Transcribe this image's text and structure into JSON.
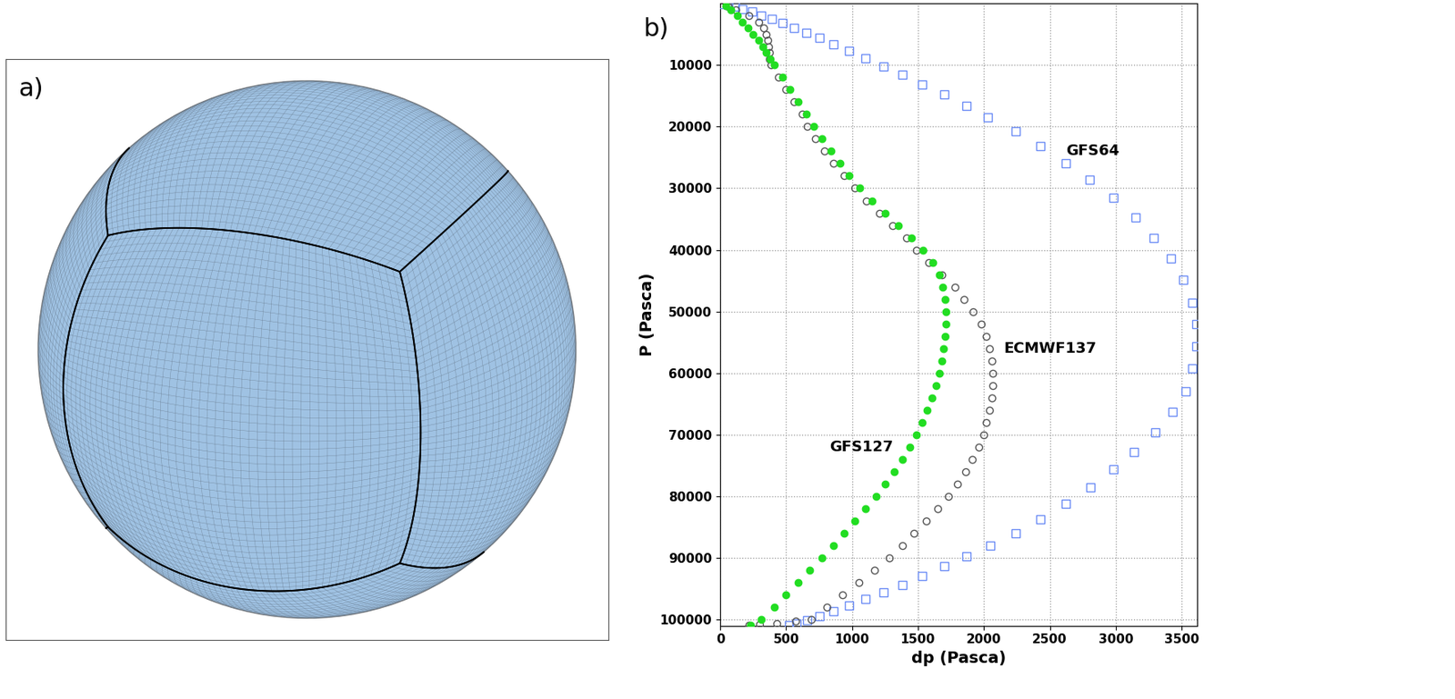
{
  "chart_data": [
    {
      "type": "globe",
      "annotation": "a)"
    },
    {
      "type": "scatter",
      "annotation": "b)",
      "x_label": "dp (Pasca)",
      "y_label": "P (Pasca)",
      "xlim": [
        0,
        3620
      ],
      "ylim": [
        101000,
        0
      ],
      "xticks": [
        0,
        500,
        1000,
        1500,
        2000,
        2500,
        3000,
        3500
      ],
      "yticks": [
        10000,
        20000,
        30000,
        40000,
        50000,
        60000,
        70000,
        80000,
        90000,
        100000
      ],
      "grid": true,
      "series": [
        {
          "name": "GFS64",
          "color": "#6b8cf5",
          "marker": "open_square",
          "x": [
            20,
            60,
            110,
            170,
            240,
            310,
            390,
            470,
            560,
            650,
            750,
            860,
            980,
            1100,
            1240,
            1380,
            1530,
            1700,
            1870,
            2030,
            2240,
            2430,
            2620,
            2800,
            2980,
            3150,
            3290,
            3420,
            3510,
            3580,
            3610,
            3610,
            3580,
            3530,
            3430,
            3300,
            3140,
            2980,
            2810,
            2620,
            2430,
            2240,
            2050,
            1870,
            1700,
            1530,
            1380,
            1240,
            1100,
            980,
            860,
            750,
            660,
            580,
            520
          ],
          "values": [
            50,
            200,
            500,
            900,
            1300,
            1900,
            2500,
            3200,
            3900,
            4700,
            5600,
            6600,
            7700,
            8900,
            10200,
            11600,
            13100,
            14800,
            16600,
            18500,
            20800,
            23200,
            25900,
            28600,
            31500,
            34700,
            38100,
            41400,
            44900,
            48600,
            52100,
            55700,
            59300,
            63000,
            66300,
            69600,
            72800,
            75600,
            78600,
            81200,
            83700,
            86000,
            88000,
            89800,
            91400,
            93000,
            94400,
            95600,
            96700,
            97700,
            98600,
            99400,
            100100,
            100600,
            100900
          ]
        },
        {
          "name": "ECMWF137",
          "color": "#555555",
          "marker": "open_circle",
          "x": [
            60,
            120,
            220,
            290,
            330,
            350,
            360,
            365,
            370,
            375,
            385,
            440,
            500,
            560,
            620,
            660,
            720,
            790,
            860,
            940,
            1020,
            1110,
            1210,
            1310,
            1410,
            1490,
            1580,
            1680,
            1780,
            1850,
            1920,
            1980,
            2020,
            2045,
            2060,
            2070,
            2070,
            2060,
            2040,
            2020,
            2000,
            1960,
            1910,
            1860,
            1800,
            1730,
            1650,
            1560,
            1470,
            1380,
            1280,
            1170,
            1050,
            930,
            810,
            690,
            570,
            430,
            300,
            220
          ],
          "values": [
            500,
            1000,
            2000,
            3000,
            4000,
            5000,
            6000,
            7000,
            8000,
            9000,
            10000,
            12000,
            14000,
            16000,
            18000,
            20000,
            22000,
            24000,
            26000,
            28000,
            30000,
            32000,
            34000,
            36000,
            38000,
            40000,
            42000,
            44000,
            46000,
            48000,
            50000,
            52000,
            54000,
            56000,
            58000,
            60000,
            62000,
            64000,
            66000,
            68000,
            70000,
            72000,
            74000,
            76000,
            78000,
            80000,
            82000,
            84000,
            86000,
            88000,
            90000,
            92000,
            94000,
            96000,
            98000,
            100000,
            100300,
            100600,
            100800,
            100900
          ]
        },
        {
          "name": "GFS127",
          "color": "#22dd22",
          "marker": "circle",
          "x": [
            40,
            80,
            130,
            170,
            210,
            250,
            290,
            320,
            350,
            380,
            410,
            470,
            530,
            590,
            650,
            710,
            770,
            840,
            910,
            980,
            1060,
            1150,
            1250,
            1350,
            1450,
            1540,
            1610,
            1660,
            1690,
            1705,
            1710,
            1710,
            1705,
            1695,
            1680,
            1660,
            1635,
            1605,
            1570,
            1530,
            1490,
            1440,
            1380,
            1320,
            1250,
            1180,
            1100,
            1020,
            940,
            860,
            770,
            680,
            590,
            500,
            410,
            310,
            230
          ],
          "values": [
            300,
            1000,
            2000,
            3000,
            4000,
            5000,
            6000,
            7000,
            8000,
            9000,
            10000,
            12000,
            14000,
            16000,
            18000,
            20000,
            22000,
            24000,
            26000,
            28000,
            30000,
            32000,
            34000,
            36000,
            38000,
            40000,
            42000,
            44000,
            46000,
            48000,
            50000,
            52000,
            54000,
            56000,
            58000,
            60000,
            62000,
            64000,
            66000,
            68000,
            70000,
            72000,
            74000,
            76000,
            78000,
            80000,
            82000,
            84000,
            86000,
            88000,
            90000,
            92000,
            94000,
            96000,
            98000,
            100000,
            100900
          ]
        }
      ]
    }
  ]
}
